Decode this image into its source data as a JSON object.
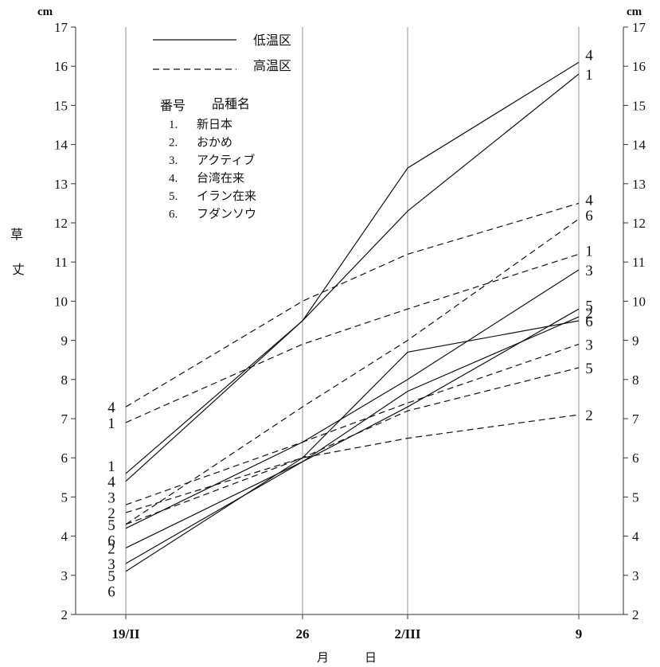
{
  "chart_data": {
    "type": "line",
    "title": "",
    "ylabel": "草 丈",
    "xlabel": "月　　　日",
    "y_unit": "cm",
    "ylim": [
      2,
      17
    ],
    "yticks": [
      2,
      3,
      4,
      5,
      6,
      7,
      8,
      9,
      10,
      11,
      12,
      13,
      14,
      15,
      16,
      17
    ],
    "x": [
      "19/II",
      "26",
      "2/III",
      "9"
    ],
    "x_days": [
      0,
      7,
      11,
      18
    ],
    "legend": {
      "solid_label": "低温区",
      "dashed_label": "高温区",
      "table_header_number": "番号",
      "table_header_variety": "品種名",
      "varieties": [
        {
          "num": "1.",
          "name": "新日本"
        },
        {
          "num": "2.",
          "name": "おかめ"
        },
        {
          "num": "3.",
          "name": "アクティブ"
        },
        {
          "num": "4.",
          "name": "台湾在来"
        },
        {
          "num": "5.",
          "name": "イラン在来"
        },
        {
          "num": "6.",
          "name": "フダンソウ"
        }
      ]
    },
    "series": [
      {
        "name": "1",
        "treatment": "低温区",
        "style": "solid",
        "values": [
          5.4,
          9.5,
          12.3,
          15.8
        ]
      },
      {
        "name": "2",
        "treatment": "低温区",
        "style": "solid",
        "values": [
          3.7,
          5.9,
          7.7,
          9.6
        ]
      },
      {
        "name": "3",
        "treatment": "低温区",
        "style": "solid",
        "values": [
          4.2,
          6.4,
          8.0,
          10.8
        ]
      },
      {
        "name": "4",
        "treatment": "低温区",
        "style": "solid",
        "values": [
          5.6,
          9.5,
          13.4,
          16.1
        ]
      },
      {
        "name": "5",
        "treatment": "低温区",
        "style": "solid",
        "values": [
          3.3,
          5.9,
          7.3,
          9.8
        ]
      },
      {
        "name": "6",
        "treatment": "低温区",
        "style": "solid",
        "values": [
          3.1,
          6.0,
          8.7,
          9.5
        ]
      },
      {
        "name": "1",
        "treatment": "高温区",
        "style": "dashed",
        "values": [
          6.9,
          8.9,
          9.8,
          11.2
        ]
      },
      {
        "name": "2",
        "treatment": "高温区",
        "style": "dashed",
        "values": [
          4.6,
          6.0,
          6.5,
          7.1
        ]
      },
      {
        "name": "3",
        "treatment": "高温区",
        "style": "dashed",
        "values": [
          4.8,
          6.4,
          7.4,
          8.9
        ]
      },
      {
        "name": "4",
        "treatment": "高温区",
        "style": "dashed",
        "values": [
          7.3,
          10.0,
          11.2,
          12.5
        ]
      },
      {
        "name": "5",
        "treatment": "高温区",
        "style": "dashed",
        "values": [
          4.3,
          6.0,
          7.2,
          8.3
        ]
      },
      {
        "name": "6",
        "treatment": "高温区",
        "style": "dashed",
        "values": [
          4.3,
          7.3,
          9.0,
          12.1
        ]
      }
    ],
    "start_labels": [
      {
        "text": "4",
        "y": 7.3
      },
      {
        "text": "1",
        "y": 6.9
      },
      {
        "text": "1",
        "y": 5.8
      },
      {
        "text": "4",
        "y": 5.4
      },
      {
        "text": "3",
        "y": 5.0
      },
      {
        "text": "2",
        "y": 4.6
      },
      {
        "text": "5",
        "y": 4.3
      },
      {
        "text": "6",
        "y": 3.9
      },
      {
        "text": "2",
        "y": 3.7
      },
      {
        "text": "3",
        "y": 3.3
      },
      {
        "text": "5",
        "y": 3.0
      },
      {
        "text": "6",
        "y": 2.6
      }
    ],
    "end_labels": [
      {
        "text": "4",
        "y": 16.3
      },
      {
        "text": "1",
        "y": 15.8
      },
      {
        "text": "4",
        "y": 12.6
      },
      {
        "text": "6",
        "y": 12.2
      },
      {
        "text": "1",
        "y": 11.3
      },
      {
        "text": "3",
        "y": 10.8
      },
      {
        "text": "5",
        "y": 9.9
      },
      {
        "text": "2",
        "y": 9.7
      },
      {
        "text": "6",
        "y": 9.5
      },
      {
        "text": "3",
        "y": 8.9
      },
      {
        "text": "5",
        "y": 8.3
      },
      {
        "text": "2",
        "y": 7.1
      }
    ]
  }
}
